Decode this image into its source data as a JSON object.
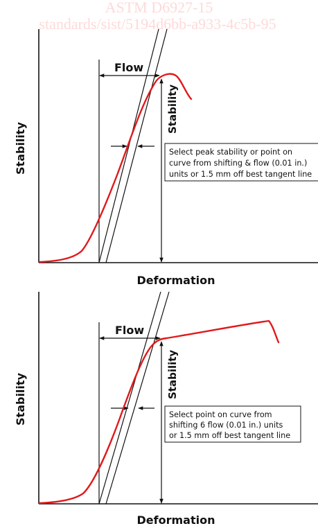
{
  "watermark": {
    "line1": "ASTM D6927-15",
    "line2": "standards/sist/5194d6bb-a933-4c5b-95"
  },
  "diagram_top": {
    "flow_label": "Flow",
    "stability_label": "Stability",
    "y_axis_label": "Stability",
    "x_axis_label": "Deformation",
    "note_lines": [
      "Select peak stability or point on",
      "curve from shifting & flow (0.01 in.)",
      "units or 1.5 mm off best tangent line"
    ]
  },
  "diagram_bottom": {
    "flow_label": "Flow",
    "stability_label": "Stability",
    "y_axis_label": "Stability",
    "x_axis_label": "Deformation",
    "note_lines": [
      "Select point on curve from",
      "shifting 6 flow (0.01 in.) units",
      "or 1.5 mm off best tangent line"
    ]
  },
  "colors": {
    "curve": "#e0191b",
    "lines": "#111111",
    "watermark": "#ffd9d9"
  }
}
